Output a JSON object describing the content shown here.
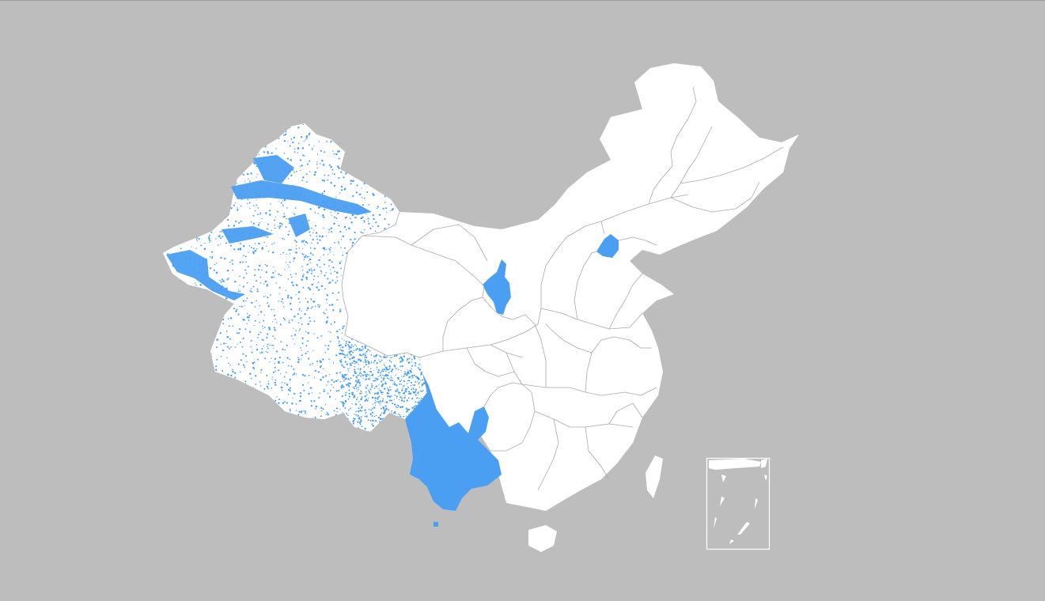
{
  "map": {
    "background_color": "#bdbdbd",
    "land_color": "#ffffff",
    "boundary_color": "#a9a9a9",
    "highlight_color": "#4a9ff2",
    "highlighted_regions": [
      "xinjiang",
      "xizang",
      "yunnan",
      "ningxia",
      "beijing"
    ],
    "inset": "south-china-sea"
  }
}
